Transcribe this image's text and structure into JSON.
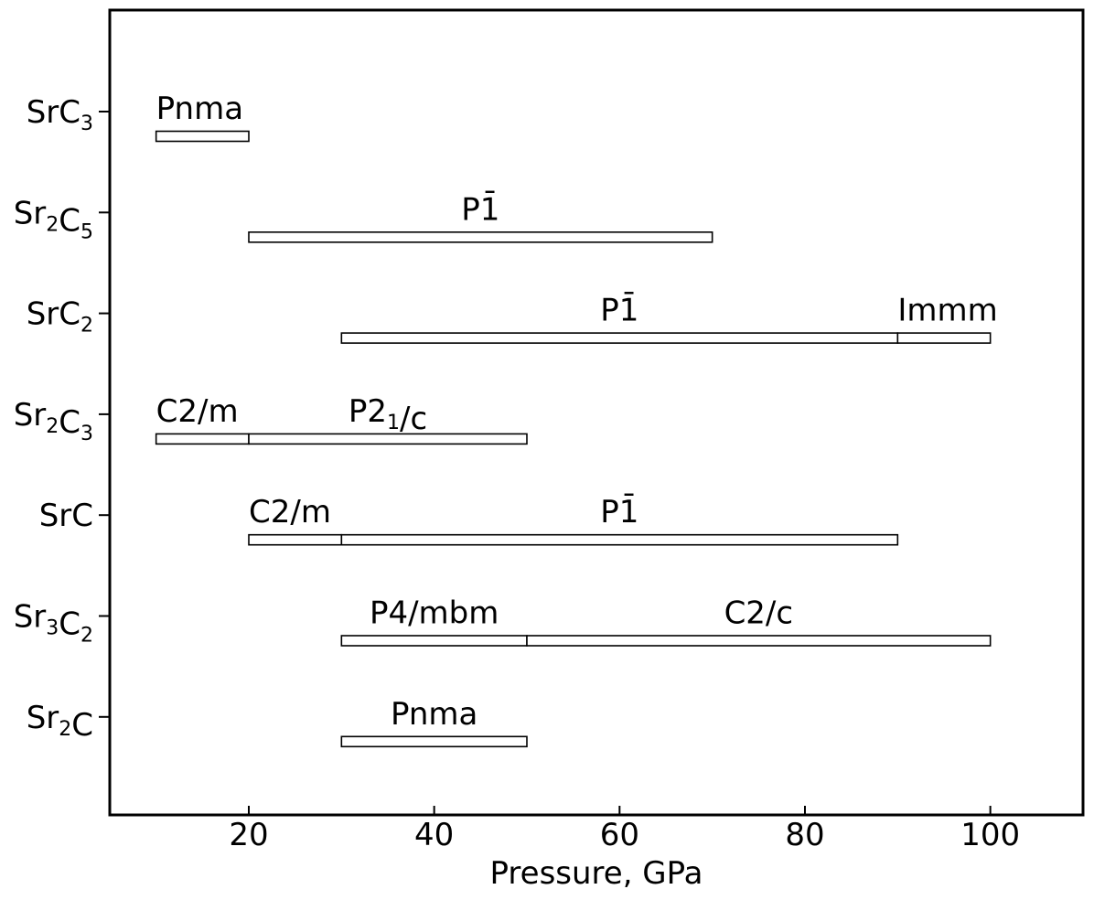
{
  "chart_data": {
    "type": "bar",
    "xlabel": "Pressure, GPa",
    "xlim": [
      5,
      110
    ],
    "xticks": [
      20,
      40,
      60,
      80,
      100
    ],
    "grid": false,
    "categories": [
      {
        "formula": [
          [
            "Sr",
            ""
          ],
          [
            "C",
            "3"
          ]
        ]
      },
      {
        "formula": [
          [
            "Sr",
            "2"
          ],
          [
            "C",
            "5"
          ]
        ]
      },
      {
        "formula": [
          [
            "Sr",
            ""
          ],
          [
            "C",
            "2"
          ]
        ]
      },
      {
        "formula": [
          [
            "Sr",
            "2"
          ],
          [
            "C",
            "3"
          ]
        ]
      },
      {
        "formula": [
          [
            "Sr",
            ""
          ],
          [
            "C",
            ""
          ]
        ]
      },
      {
        "formula": [
          [
            "Sr",
            "3"
          ],
          [
            "C",
            "2"
          ]
        ]
      },
      {
        "formula": [
          [
            "Sr",
            "2"
          ],
          [
            "C",
            ""
          ]
        ]
      }
    ],
    "segments": [
      {
        "row": 0,
        "start": 10,
        "end": 20,
        "label": "Pnma"
      },
      {
        "row": 1,
        "start": 20,
        "end": 70,
        "label": "P1̄"
      },
      {
        "row": 2,
        "start": 30,
        "end": 90,
        "label": "P1̄"
      },
      {
        "row": 2,
        "start": 90,
        "end": 100,
        "label": "Immm"
      },
      {
        "row": 3,
        "start": 10,
        "end": 20,
        "label": "C2/m"
      },
      {
        "row": 3,
        "start": 20,
        "end": 50,
        "label": [
          [
            "P2",
            ""
          ],
          [
            "1",
            "sub"
          ],
          [
            "/c",
            ""
          ]
        ]
      },
      {
        "row": 4,
        "start": 20,
        "end": 30,
        "label": "C2/m"
      },
      {
        "row": 4,
        "start": 30,
        "end": 90,
        "label": "P1̄"
      },
      {
        "row": 5,
        "start": 30,
        "end": 50,
        "label": "P4/mbm"
      },
      {
        "row": 5,
        "start": 50,
        "end": 100,
        "label": "C2/c"
      },
      {
        "row": 6,
        "start": 30,
        "end": 50,
        "label": "Pnma"
      }
    ]
  }
}
